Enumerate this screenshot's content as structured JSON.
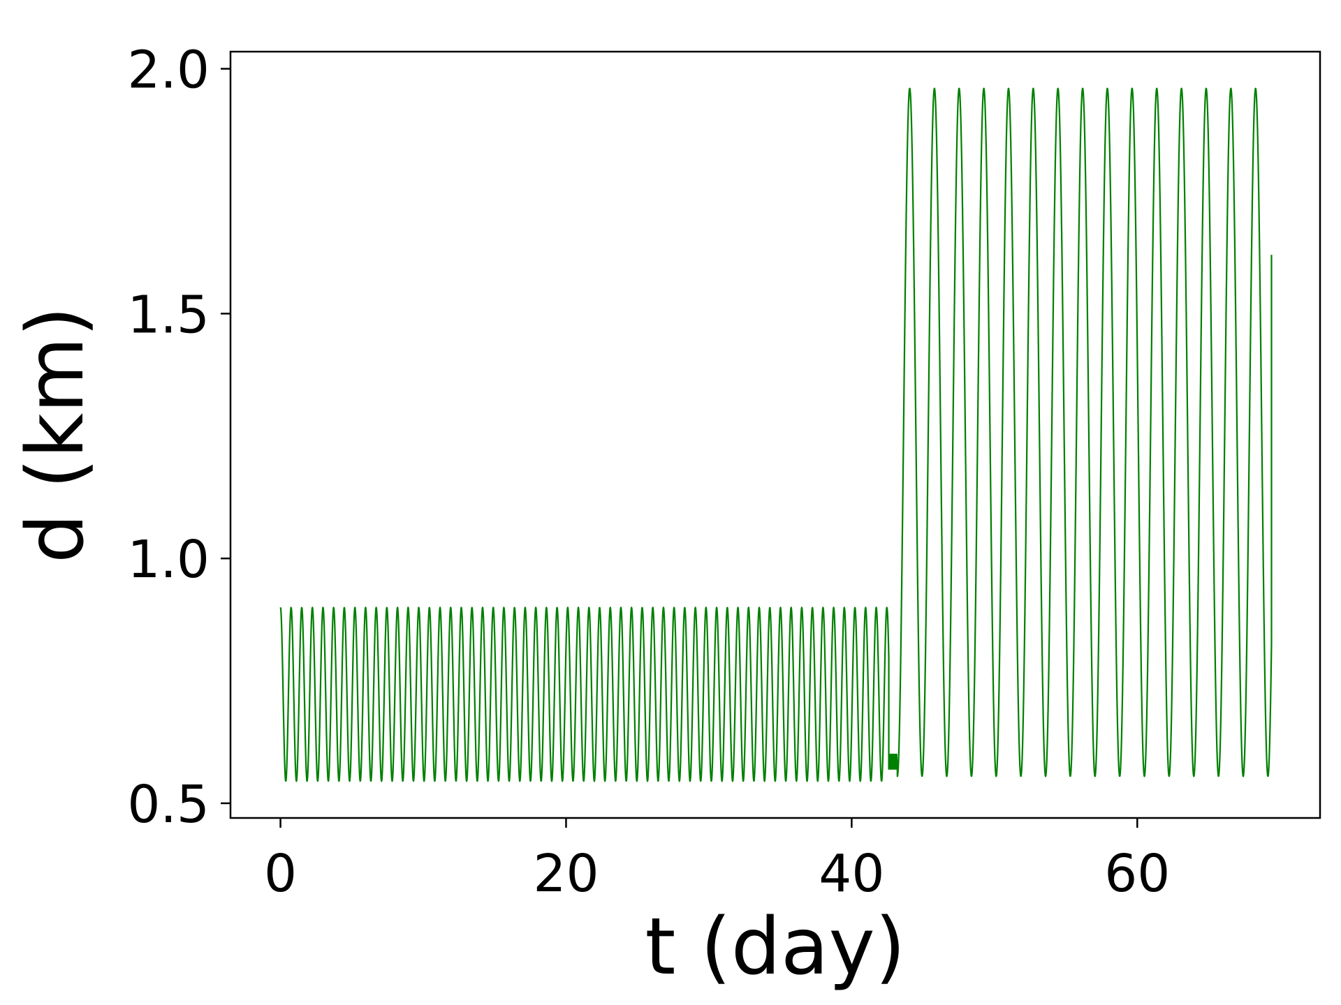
{
  "chart_data": {
    "type": "line",
    "title": "",
    "xlabel": "t (day)",
    "ylabel": "d (km)",
    "xlim": [
      -3.5,
      72.8
    ],
    "ylim": [
      0.47,
      2.035
    ],
    "xticks": [
      0,
      20,
      40,
      60
    ],
    "xtick_labels": [
      "0",
      "20",
      "40",
      "60"
    ],
    "yticks": [
      0.5,
      1.0,
      1.5,
      2.0
    ],
    "ytick_labels": [
      "0.5",
      "1.0",
      "1.5",
      "2.0"
    ],
    "grid": false,
    "legend": "none",
    "series": [
      {
        "color": "#008000",
        "segments": [
          {
            "t_start": 0.0,
            "t_end": 42.6,
            "period_days": 0.745,
            "d_max": 0.9,
            "d_min": 0.545,
            "phase": "max"
          },
          {
            "t_start": 42.6,
            "t_end": 43.2,
            "plateau": [
              0.57,
              0.6
            ]
          },
          {
            "t_start": 43.2,
            "t_end": 69.4,
            "period_days": 1.73,
            "d_max": 1.96,
            "d_min": 0.555,
            "phase": "min",
            "end_value": 1.62
          }
        ]
      }
    ]
  }
}
